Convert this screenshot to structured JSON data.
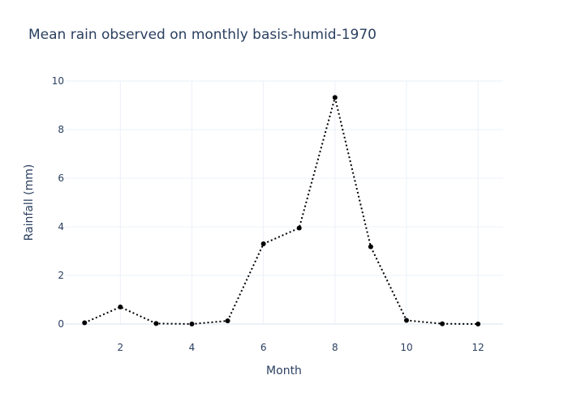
{
  "chart_data": {
    "type": "line",
    "title": "Mean rain observed on monthly basis-humid-1970",
    "xlabel": "Month",
    "ylabel": "Rainfall (mm)",
    "x": [
      1,
      2,
      3,
      4,
      5,
      6,
      7,
      8,
      9,
      10,
      11,
      12
    ],
    "series": [
      {
        "values": [
          0.05,
          0.7,
          0.02,
          0.0,
          0.13,
          3.3,
          3.95,
          9.32,
          3.18,
          0.15,
          0.01,
          0.0
        ]
      }
    ],
    "xlim": [
      0.45,
      12.7
    ],
    "ylim": [
      0,
      10
    ],
    "xticks": [
      2,
      4,
      6,
      8,
      10,
      12
    ],
    "yticks": [
      0,
      2,
      4,
      6,
      8,
      10
    ],
    "grid": true,
    "line_style": "dotted",
    "colors": {
      "line": "#000000",
      "marker": "#000000",
      "grid": "#ebf0f8",
      "text": "#2a3f5f"
    }
  }
}
